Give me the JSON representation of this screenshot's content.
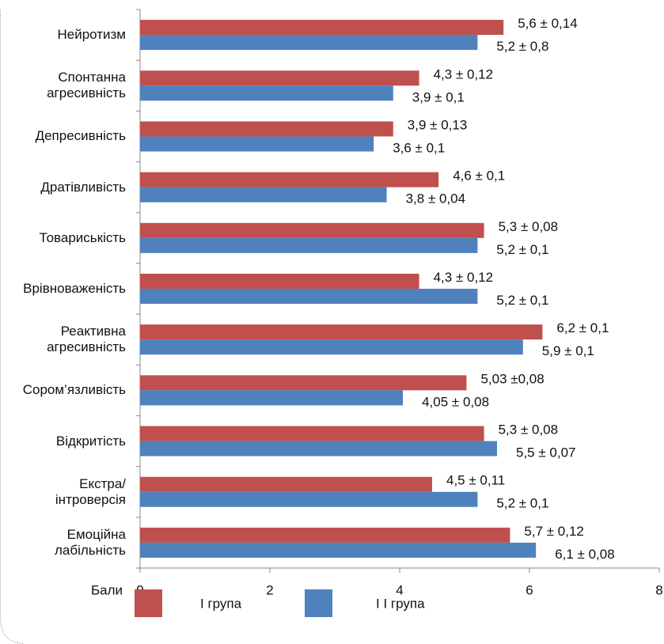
{
  "chart_data": {
    "type": "hbar",
    "categories": [
      "Нейротизм",
      "Спонтанна\nагресивність",
      "Депресивність",
      "Дратівливість",
      "Товариськість",
      "Врівноваженість",
      "Реактивна\nагресивність",
      "Сором’язливість",
      "Відкритість",
      "Екстра/\nінтроверсія",
      "Емоційна\nлабільність"
    ],
    "series": [
      {
        "name": "I група",
        "color": "#c0504d",
        "values": [
          5.6,
          4.3,
          3.9,
          4.6,
          5.3,
          4.3,
          6.2,
          5.03,
          5.3,
          4.5,
          5.7
        ],
        "value_labels": [
          "5,6 ± 0,14",
          "4,3 ± 0,12",
          "3,9 ± 0,13",
          "4,6 ± 0,1",
          "5,3 ± 0,08",
          "4,3 ± 0,12",
          "6,2 ± 0,1",
          "5,03 ±0,08",
          "5,3 ± 0,08",
          "4,5 ± 0,11",
          "5,7 ± 0,12"
        ]
      },
      {
        "name": "I I група",
        "color": "#4f81bd",
        "values": [
          5.2,
          3.9,
          3.6,
          3.8,
          5.2,
          5.2,
          5.9,
          4.05,
          5.5,
          5.2,
          6.1
        ],
        "value_labels": [
          "5,2 ± 0,8",
          "3,9 ± 0,1",
          "3,6 ± 0,1",
          "3,8 ± 0,04",
          "5,2 ± 0,1",
          "5,2 ± 0,1",
          "5,9 ± 0,1",
          "4,05 ± 0,08",
          "5,5 ± 0,07",
          "5,2 ± 0,1",
          "6,1 ± 0,08"
        ]
      }
    ],
    "x_label": "Бали",
    "xlim": [
      0,
      8
    ],
    "xticks": [
      0,
      2,
      4,
      6,
      8
    ]
  }
}
